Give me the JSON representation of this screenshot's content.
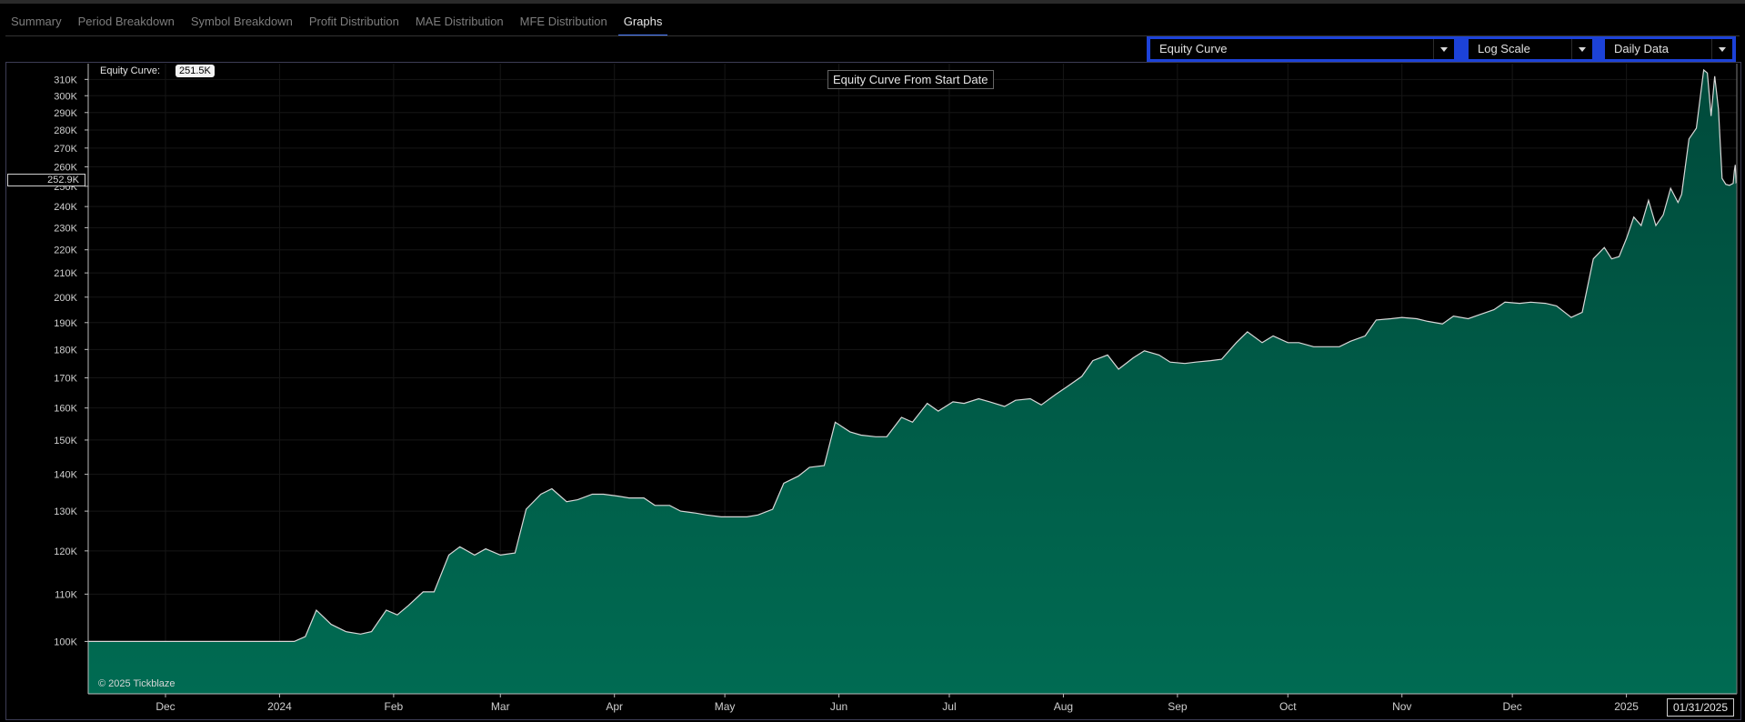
{
  "tabs": [
    {
      "label": "Summary",
      "active": false
    },
    {
      "label": "Period Breakdown",
      "active": false
    },
    {
      "label": "Symbol Breakdown",
      "active": false
    },
    {
      "label": "Profit Distribution",
      "active": false
    },
    {
      "label": "MAE Distribution",
      "active": false
    },
    {
      "label": "MFE Distribution",
      "active": false
    },
    {
      "label": "Graphs",
      "active": true
    }
  ],
  "controls": {
    "graph_type": "Equity Curve",
    "scale": "Log Scale",
    "data_frequency": "Daily Data"
  },
  "colors": {
    "fill_top": "#004a3b",
    "fill_bottom": "#006b52",
    "line": "#d8d8d8",
    "accent": "#1c42d8"
  },
  "chart_data": {
    "type": "area",
    "title": "Equity Curve From Start Date",
    "xlabel": "",
    "ylabel": "",
    "scale": "log",
    "grid": true,
    "current_value_label": "Equity Curve:",
    "current_value": "251.5K",
    "cursor_value_label": "252.9K",
    "cursor_date_label": "01/31/2025",
    "copyright": "© 2025 Tickblaze",
    "x_range": [
      "2023-11-10",
      "2025-01-31"
    ],
    "y_range": [
      90000,
      320000
    ],
    "y_ticks": [
      100000,
      110000,
      120000,
      130000,
      140000,
      150000,
      160000,
      170000,
      180000,
      190000,
      200000,
      210000,
      220000,
      230000,
      240000,
      250000,
      260000,
      270000,
      280000,
      290000,
      300000,
      310000
    ],
    "y_tick_labels": [
      "100K",
      "110K",
      "120K",
      "130K",
      "140K",
      "150K",
      "160K",
      "170K",
      "180K",
      "190K",
      "200K",
      "210K",
      "220K",
      "230K",
      "240K",
      "250K",
      "260K",
      "270K",
      "280K",
      "290K",
      "300K",
      "310K"
    ],
    "x_ticks": [
      "2023-12-01",
      "2024-01-01",
      "2024-02-01",
      "2024-03-01",
      "2024-04-01",
      "2024-05-01",
      "2024-06-01",
      "2024-07-01",
      "2024-08-01",
      "2024-09-01",
      "2024-10-01",
      "2024-11-01",
      "2024-12-01",
      "2025-01-01"
    ],
    "x_tick_labels": [
      "Dec",
      "2024",
      "Feb",
      "Mar",
      "Apr",
      "May",
      "Jun",
      "Jul",
      "Aug",
      "Sep",
      "Oct",
      "Nov",
      "Dec",
      "2025"
    ],
    "series": [
      {
        "points": [
          [
            "2023-11-10",
            100000
          ],
          [
            "2023-12-01",
            100000
          ],
          [
            "2024-01-01",
            100000
          ],
          [
            "2024-01-05",
            100000
          ],
          [
            "2024-01-08",
            101000
          ],
          [
            "2024-01-11",
            106500
          ],
          [
            "2024-01-15",
            103500
          ],
          [
            "2024-01-19",
            102000
          ],
          [
            "2024-01-23",
            101500
          ],
          [
            "2024-01-26",
            102000
          ],
          [
            "2024-01-30",
            106500
          ],
          [
            "2024-02-02",
            105500
          ],
          [
            "2024-02-05",
            107500
          ],
          [
            "2024-02-09",
            110500
          ],
          [
            "2024-02-12",
            110500
          ],
          [
            "2024-02-16",
            119000
          ],
          [
            "2024-02-19",
            121000
          ],
          [
            "2024-02-23",
            119000
          ],
          [
            "2024-02-26",
            120500
          ],
          [
            "2024-03-01",
            119000
          ],
          [
            "2024-03-05",
            119500
          ],
          [
            "2024-03-08",
            130500
          ],
          [
            "2024-03-12",
            134500
          ],
          [
            "2024-03-15",
            136000
          ],
          [
            "2024-03-19",
            132500
          ],
          [
            "2024-03-22",
            133000
          ],
          [
            "2024-03-26",
            134500
          ],
          [
            "2024-03-29",
            134500
          ],
          [
            "2024-04-02",
            134000
          ],
          [
            "2024-04-05",
            133500
          ],
          [
            "2024-04-09",
            133500
          ],
          [
            "2024-04-12",
            131500
          ],
          [
            "2024-04-16",
            131500
          ],
          [
            "2024-04-19",
            130000
          ],
          [
            "2024-04-23",
            129500
          ],
          [
            "2024-04-26",
            129000
          ],
          [
            "2024-04-30",
            128500
          ],
          [
            "2024-05-03",
            128500
          ],
          [
            "2024-05-07",
            128500
          ],
          [
            "2024-05-10",
            129000
          ],
          [
            "2024-05-14",
            130500
          ],
          [
            "2024-05-17",
            137500
          ],
          [
            "2024-05-21",
            139500
          ],
          [
            "2024-05-24",
            142000
          ],
          [
            "2024-05-28",
            142500
          ],
          [
            "2024-05-31",
            155500
          ],
          [
            "2024-06-04",
            152500
          ],
          [
            "2024-06-07",
            151500
          ],
          [
            "2024-06-11",
            151000
          ],
          [
            "2024-06-14",
            151000
          ],
          [
            "2024-06-18",
            157000
          ],
          [
            "2024-06-21",
            155500
          ],
          [
            "2024-06-25",
            161500
          ],
          [
            "2024-06-28",
            159000
          ],
          [
            "2024-07-02",
            162000
          ],
          [
            "2024-07-05",
            161500
          ],
          [
            "2024-07-09",
            163000
          ],
          [
            "2024-07-12",
            162000
          ],
          [
            "2024-07-16",
            160500
          ],
          [
            "2024-07-19",
            162500
          ],
          [
            "2024-07-23",
            163000
          ],
          [
            "2024-07-26",
            161000
          ],
          [
            "2024-07-30",
            164500
          ],
          [
            "2024-08-02",
            167000
          ],
          [
            "2024-08-06",
            170500
          ],
          [
            "2024-08-09",
            176000
          ],
          [
            "2024-08-13",
            178000
          ],
          [
            "2024-08-16",
            173000
          ],
          [
            "2024-08-20",
            177000
          ],
          [
            "2024-08-23",
            179500
          ],
          [
            "2024-08-27",
            178000
          ],
          [
            "2024-08-30",
            175500
          ],
          [
            "2024-09-03",
            175000
          ],
          [
            "2024-09-06",
            175500
          ],
          [
            "2024-09-10",
            176000
          ],
          [
            "2024-09-13",
            176500
          ],
          [
            "2024-09-17",
            182500
          ],
          [
            "2024-09-20",
            186500
          ],
          [
            "2024-09-24",
            182500
          ],
          [
            "2024-09-27",
            185000
          ],
          [
            "2024-10-01",
            182500
          ],
          [
            "2024-10-04",
            182500
          ],
          [
            "2024-10-08",
            181000
          ],
          [
            "2024-10-11",
            181000
          ],
          [
            "2024-10-15",
            181000
          ],
          [
            "2024-10-18",
            183000
          ],
          [
            "2024-10-22",
            185000
          ],
          [
            "2024-10-25",
            191000
          ],
          [
            "2024-10-29",
            191500
          ],
          [
            "2024-11-01",
            192000
          ],
          [
            "2024-11-05",
            191500
          ],
          [
            "2024-11-08",
            190500
          ],
          [
            "2024-11-12",
            189500
          ],
          [
            "2024-11-15",
            192500
          ],
          [
            "2024-11-19",
            191500
          ],
          [
            "2024-11-22",
            193000
          ],
          [
            "2024-11-26",
            195000
          ],
          [
            "2024-11-29",
            198000
          ],
          [
            "2024-12-03",
            197500
          ],
          [
            "2024-12-06",
            198000
          ],
          [
            "2024-12-10",
            197500
          ],
          [
            "2024-12-13",
            196500
          ],
          [
            "2024-12-17",
            192000
          ],
          [
            "2024-12-20",
            194000
          ],
          [
            "2024-12-23",
            216000
          ],
          [
            "2024-12-26",
            221000
          ],
          [
            "2024-12-28",
            216000
          ],
          [
            "2024-12-30",
            217000
          ],
          [
            "2025-01-01",
            225000
          ],
          [
            "2025-01-03",
            235000
          ],
          [
            "2025-01-05",
            231000
          ],
          [
            "2025-01-07",
            243000
          ],
          [
            "2025-01-09",
            231000
          ],
          [
            "2025-01-11",
            236000
          ],
          [
            "2025-01-13",
            249000
          ],
          [
            "2025-01-15",
            242000
          ],
          [
            "2025-01-16",
            246000
          ],
          [
            "2025-01-18",
            275000
          ],
          [
            "2025-01-20",
            281000
          ],
          [
            "2025-01-22",
            316000
          ],
          [
            "2025-01-23",
            314000
          ],
          [
            "2025-01-24",
            288000
          ],
          [
            "2025-01-25",
            312000
          ],
          [
            "2025-01-26",
            292000
          ],
          [
            "2025-01-27",
            254000
          ],
          [
            "2025-01-28",
            251000
          ],
          [
            "2025-01-29",
            250500
          ],
          [
            "2025-01-30",
            251500
          ],
          [
            "2025-01-30T08",
            258000
          ],
          [
            "2025-01-30T14",
            261000
          ],
          [
            "2025-01-30T19",
            252000
          ],
          [
            "2025-01-31",
            252500
          ]
        ]
      }
    ]
  }
}
